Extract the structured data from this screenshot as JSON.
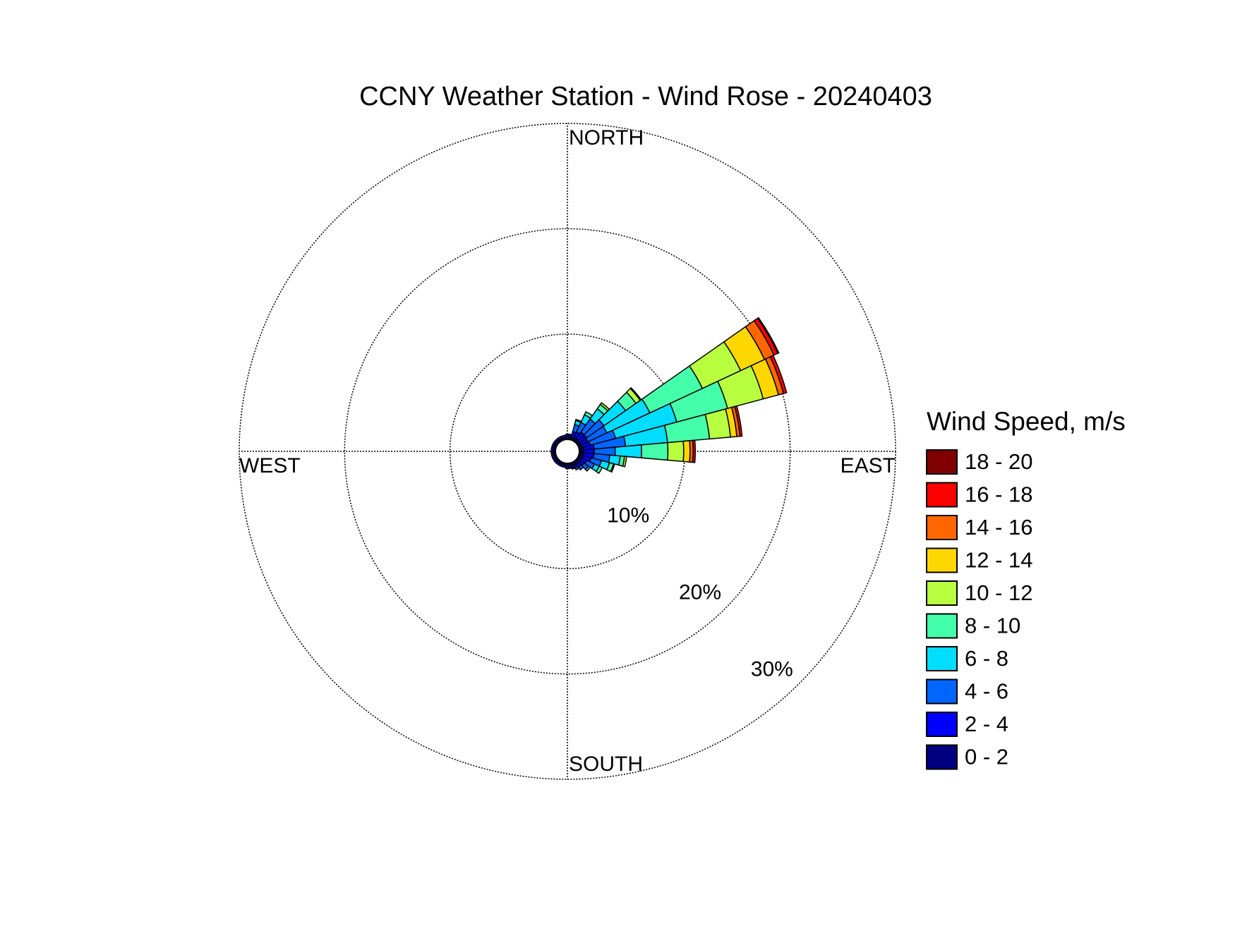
{
  "chart_data": {
    "type": "windrose",
    "title": "CCNY Weather Station - Wind Rose - 20240403",
    "legend_title": "Wind Speed, m/s",
    "x": [
      0,
      10,
      20,
      30,
      40,
      50,
      60,
      70,
      80,
      90,
      100,
      110,
      120,
      130,
      140,
      150,
      160,
      170,
      180,
      190,
      200,
      210,
      220,
      230,
      240,
      250,
      260,
      270,
      280,
      290,
      300,
      310,
      320,
      330,
      340,
      350
    ],
    "xticks": [
      {
        "value": 0,
        "label": "NORTH"
      },
      {
        "value": 90,
        "label": "EAST"
      },
      {
        "value": 180,
        "label": "SOUTH"
      },
      {
        "value": 270,
        "label": "WEST"
      }
    ],
    "rlim": [
      0,
      30
    ],
    "rticks": [
      {
        "value": 10,
        "label": "10%"
      },
      {
        "value": 20,
        "label": "20%"
      },
      {
        "value": 30,
        "label": "30%"
      }
    ],
    "grid": true,
    "series": [
      {
        "name": "0 - 2",
        "color": "#000080",
        "values": [
          0.3,
          0.3,
          0.3,
          0.3,
          0.3,
          0.3,
          0.3,
          0.3,
          0.4,
          0.4,
          0.4,
          0.4,
          0.3,
          0.3,
          0.3,
          0.3,
          0.3,
          0.3,
          0.3,
          0.2,
          0.2,
          0.2,
          0.2,
          0.2,
          0.2,
          0.2,
          0.2,
          0.2,
          0.2,
          0.2,
          0.2,
          0.2,
          0.2,
          0.2,
          0.2,
          0.2
        ]
      },
      {
        "name": "2 - 4",
        "color": "#0000ff",
        "values": [
          0.2,
          0.2,
          0.5,
          0.6,
          0.8,
          0.8,
          0.7,
          0.8,
          1,
          1,
          1,
          0.8,
          0.6,
          0.5,
          0.4,
          0.3,
          0.2,
          0.2,
          0.2,
          0.2,
          0.2,
          0.2,
          0.2,
          0.2,
          0.2,
          0.2,
          0.2,
          0.2,
          0.2,
          0.2,
          0.2,
          0.2,
          0.2,
          0.2,
          0.2,
          0.2
        ]
      },
      {
        "name": "4 - 6",
        "color": "#0066ff",
        "values": [
          0,
          0,
          0.7,
          1,
          1.5,
          2,
          2,
          2.5,
          3,
          2,
          1.5,
          1,
          0.8,
          0.5,
          0.3,
          0.2,
          0.1,
          0,
          0,
          0,
          0,
          0,
          0,
          0,
          0,
          0,
          0,
          0,
          0,
          0,
          0,
          0,
          0,
          0,
          0,
          0
        ]
      },
      {
        "name": "6 - 8",
        "color": "#00ddff",
        "values": [
          0,
          0,
          0.4,
          0.8,
          1.2,
          2.5,
          4.5,
          6,
          4,
          2.5,
          1,
          0.8,
          0.5,
          0.2,
          0,
          0,
          0,
          0,
          0,
          0,
          0,
          0,
          0,
          0,
          0,
          0,
          0,
          0,
          0,
          0,
          0,
          0,
          0,
          0,
          0,
          0
        ]
      },
      {
        "name": "8 - 10",
        "color": "#44ffaa",
        "values": [
          0,
          0,
          0.1,
          0.3,
          0.5,
          1.2,
          5.5,
          5,
          4,
          2.5,
          0.4,
          0.4,
          0.3,
          0,
          0,
          0,
          0,
          0,
          0,
          0,
          0,
          0,
          0,
          0,
          0,
          0,
          0,
          0,
          0,
          0,
          0,
          0,
          0,
          0,
          0,
          0
        ]
      },
      {
        "name": "10 - 12",
        "color": "#b8ff40",
        "values": [
          0,
          0,
          0,
          0,
          0.2,
          0.5,
          4,
          3.5,
          2,
          1.5,
          0.2,
          0.1,
          0,
          0,
          0,
          0,
          0,
          0,
          0,
          0,
          0,
          0,
          0,
          0,
          0,
          0,
          0,
          0,
          0,
          0,
          0,
          0,
          0,
          0,
          0,
          0
        ]
      },
      {
        "name": "12 - 14",
        "color": "#ffd700",
        "values": [
          0,
          0,
          0,
          0,
          0,
          0.1,
          2.5,
          1.5,
          0.6,
          0.6,
          0,
          0,
          0,
          0,
          0,
          0,
          0,
          0,
          0,
          0,
          0,
          0,
          0,
          0,
          0,
          0,
          0,
          0,
          0,
          0,
          0,
          0,
          0,
          0,
          0,
          0
        ]
      },
      {
        "name": "14 - 16",
        "color": "#ff6600",
        "values": [
          0,
          0,
          0,
          0,
          0,
          0,
          1,
          0.5,
          0.3,
          0.3,
          0,
          0,
          0,
          0,
          0,
          0,
          0,
          0,
          0,
          0,
          0,
          0,
          0,
          0,
          0,
          0,
          0,
          0,
          0,
          0,
          0,
          0,
          0,
          0,
          0,
          0
        ]
      },
      {
        "name": "16 - 18",
        "color": "#ff0000",
        "values": [
          0,
          0,
          0,
          0,
          0,
          0,
          0.4,
          0.3,
          0.2,
          0.2,
          0,
          0,
          0,
          0,
          0,
          0,
          0,
          0,
          0,
          0,
          0,
          0,
          0,
          0,
          0,
          0,
          0,
          0,
          0,
          0,
          0,
          0,
          0,
          0,
          0,
          0
        ]
      },
      {
        "name": "18 - 20",
        "color": "#800000",
        "values": [
          0,
          0,
          0,
          0,
          0,
          0,
          0.1,
          0,
          0,
          0,
          0,
          0,
          0,
          0,
          0,
          0,
          0,
          0,
          0,
          0,
          0,
          0,
          0,
          0,
          0,
          0,
          0,
          0,
          0,
          0,
          0,
          0,
          0,
          0,
          0,
          0
        ]
      }
    ]
  }
}
